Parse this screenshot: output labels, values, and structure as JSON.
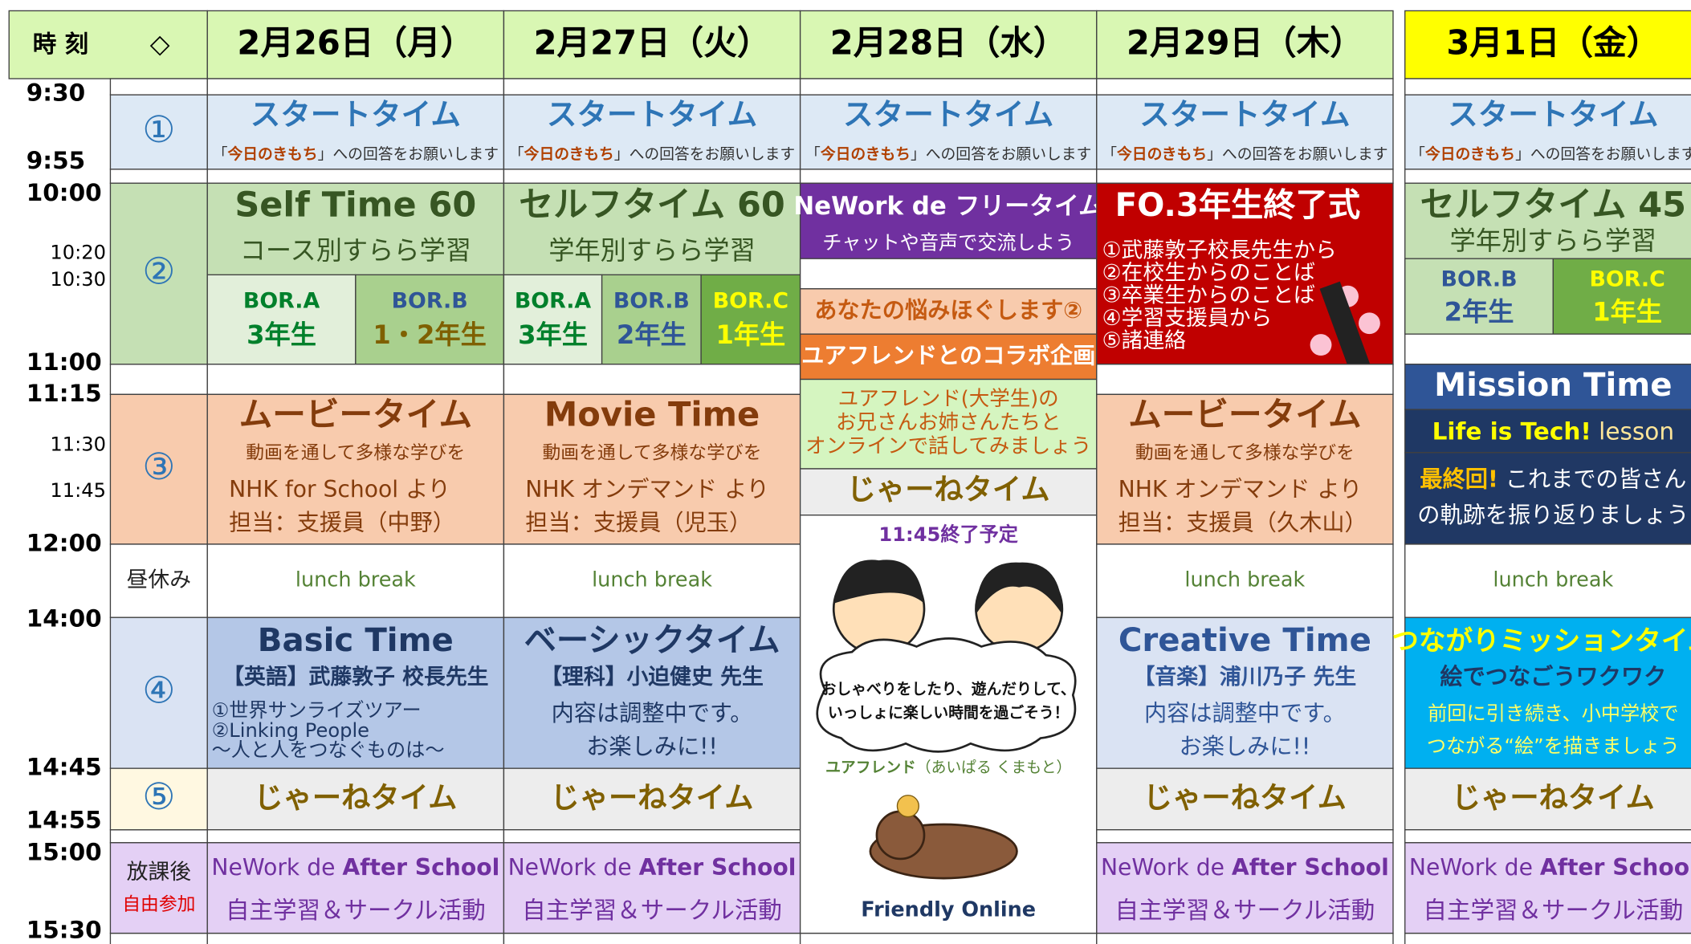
{
  "header": {
    "time_label": "時 刻",
    "mark": "◇"
  },
  "times": [
    "9:30",
    "9:55",
    "10:00",
    "10:20",
    "10:30",
    "11:00",
    "11:15",
    "11:30",
    "11:45",
    "12:00",
    "14:00",
    "14:45",
    "14:55",
    "15:00",
    "15:30"
  ],
  "periods": [
    "①",
    "②",
    "③",
    "昼休み",
    "④",
    "⑤",
    "放課後",
    "自由参加"
  ],
  "days": [
    {
      "date": "2月26日（月）",
      "p1": {
        "title": "スタートタイム",
        "note": [
          "「",
          "今日のきもち",
          "」への回答をお願いします"
        ]
      },
      "p2": {
        "title": "Self Time 60",
        "sub": "コース別すらら学習",
        "groups": [
          {
            "name": "BOR.A",
            "grade": "3年生"
          },
          {
            "name": "BOR.B",
            "grade": "1・2年生"
          }
        ]
      },
      "p3": {
        "title": "ムービータイム",
        "sub": "動画を通して多様な学びを",
        "source": "NHK for School より",
        "staff": "担当：支援員（中野）"
      },
      "lunch": "lunch break",
      "p4": {
        "title": "Basic Time",
        "teacher": "【英語】武藤敦子 校長先生",
        "lines": [
          "①世界サンライズツアー",
          "②Linking People",
          "～人と人をつなぐものは～"
        ]
      },
      "p5": "じゃーねタイム",
      "after": {
        "title": [
          "NeWork de ",
          "After School"
        ],
        "sub": "自主学習＆サークル活動"
      }
    },
    {
      "date": "2月27日（火）",
      "p1": {
        "title": "スタートタイム",
        "note": [
          "「",
          "今日のきもち",
          "」への回答をお願いします"
        ]
      },
      "p2": {
        "title": "セルフタイム 60",
        "sub": "学年別すらら学習",
        "groups": [
          {
            "name": "BOR.A",
            "grade": "3年生"
          },
          {
            "name": "BOR.B",
            "grade": "2年生"
          },
          {
            "name": "BOR.C",
            "grade": "1年生"
          }
        ]
      },
      "p3": {
        "title": "Movie Time",
        "sub": "動画を通して多様な学びを",
        "source": "NHK オンデマンド より",
        "staff": "担当：支援員（児玉）"
      },
      "lunch": "lunch break",
      "p4": {
        "title": "ベーシックタイム",
        "teacher": "【理科】小迫健史 先生",
        "lines": [
          "内容は調整中です。",
          "お楽しみに!!"
        ]
      },
      "p5": "じゃーねタイム",
      "after": {
        "title": [
          "NeWork de ",
          "After School"
        ],
        "sub": "自主学習＆サークル活動"
      }
    },
    {
      "date": "2月28日（水）",
      "p1": {
        "title": "スタートタイム",
        "note": [
          "「",
          "今日のきもち",
          "」への回答をお願いします"
        ]
      },
      "p2": {
        "title": [
          "NeWork de ",
          "フリータイム"
        ],
        "sub": "チャットや音声で交流しよう"
      },
      "p2b": "あなたの悩みほぐします②",
      "p2c": "ユアフレンドとのコラボ企画",
      "p3": {
        "lines": [
          "ユアフレンド(大学生)の",
          "お兄さんお姉さんたちと",
          "オンラインで話してみましょう"
        ]
      },
      "jane": "じゃーねタイム",
      "end": "11:45終了予定",
      "speech": [
        "おしゃべりをしたり、遊んだりして、",
        "いっしょに楽しい時間を過ごそう！"
      ],
      "credit": [
        "ユアフレンド",
        "（あいぱる くまもと）"
      ],
      "footer": "Friendly Online"
    },
    {
      "date": "2月29日（木）",
      "p1": {
        "title": "スタートタイム",
        "note": [
          "「",
          "今日のきもち",
          "」への回答をお願いします"
        ]
      },
      "p2": {
        "title": "FO.3年生終了式",
        "lines": [
          "①武藤敦子校長先生から",
          "②在校生からのことば",
          "③卒業生からのことば",
          "④学習支援員から",
          "⑤諸連絡"
        ]
      },
      "p3": {
        "title": "ムービータイム",
        "sub": "動画を通して多様な学びを",
        "source": "NHK オンデマンド より",
        "staff": "担当：支援員（久木山）"
      },
      "lunch": "lunch break",
      "p4": {
        "title": "Creative Time",
        "teacher": "【音楽】浦川乃子 先生",
        "lines": [
          "内容は調整中です。",
          "お楽しみに!!"
        ]
      },
      "p5": "じゃーねタイム",
      "after": {
        "title": [
          "NeWork de ",
          "After School"
        ],
        "sub": "自主学習＆サークル活動"
      }
    },
    {
      "date": "3月1日（金）",
      "p1": {
        "title": "スタートタイム",
        "note": [
          "「",
          "今日のきもち",
          "」への回答をお願いします"
        ]
      },
      "p2": {
        "title": "セルフタイム 45",
        "sub": "学年別すらら学習",
        "groups": [
          {
            "name": "BOR.B",
            "grade": "2年生"
          },
          {
            "name": "BOR.C",
            "grade": "1年生"
          }
        ]
      },
      "p3": {
        "title": "Mission Time",
        "tech": [
          "Life is Tech!",
          " lesson"
        ],
        "last": [
          "最終回!",
          " これまでの皆さん"
        ],
        "line": "の軌跡を振り返りましょう"
      },
      "lunch": "lunch break",
      "p4": {
        "title": "つながりミッションタイム",
        "sub": "絵でつなごうワクワク",
        "lines": [
          "前回に引き続き、小中学校で",
          "つながる“絵”を描きましょう"
        ]
      },
      "p5": "じゃーねタイム",
      "after": {
        "title": [
          "NeWork de ",
          "After School"
        ],
        "sub": "自主学習＆サークル活動"
      }
    }
  ]
}
